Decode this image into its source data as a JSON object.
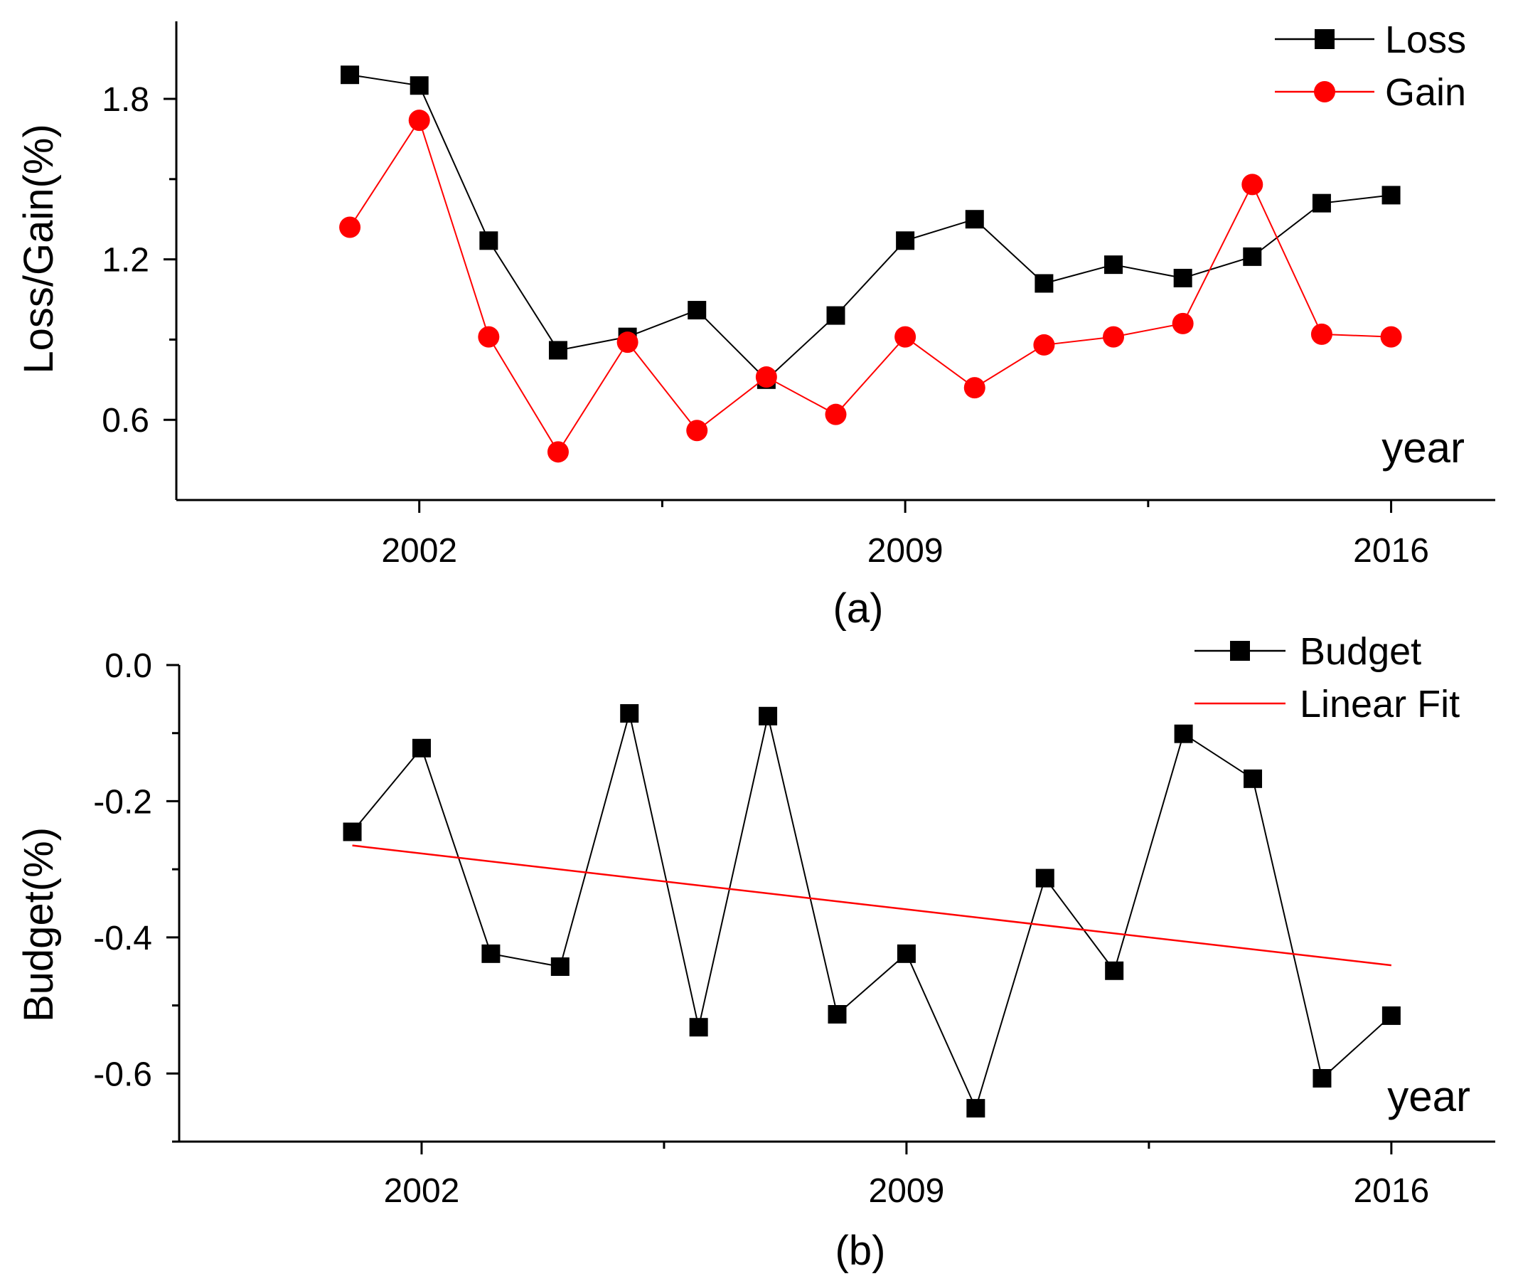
{
  "chart_data": [
    {
      "id": "a",
      "type": "line",
      "caption": "(a)",
      "xlabel": "year",
      "ylabel": "Loss/Gain(%)",
      "xlim": [
        1998.5,
        2017.5
      ],
      "ylim": [
        0.3,
        2.09
      ],
      "x_ticks": [
        2002,
        2009,
        2016
      ],
      "x_minor_ticks": [
        2005.5,
        2012.5
      ],
      "y_ticks": [
        0.6,
        1.2,
        1.8
      ],
      "y_tick_labels": [
        "0.6",
        "1.2",
        "1.8"
      ],
      "y_minor_ticks": [
        0.9,
        1.5
      ],
      "x": [
        2001,
        2002,
        2003,
        2004,
        2005,
        2006,
        2007,
        2008,
        2009,
        2010,
        2011,
        2012,
        2013,
        2014,
        2015,
        2016
      ],
      "series": [
        {
          "name": "Loss",
          "color": "#000000",
          "marker": "square",
          "values": [
            1.89,
            1.85,
            1.27,
            0.86,
            0.91,
            1.01,
            0.75,
            0.99,
            1.27,
            1.35,
            1.11,
            1.18,
            1.13,
            1.21,
            1.41,
            1.44
          ]
        },
        {
          "name": "Gain",
          "color": "#ff0000",
          "marker": "circle",
          "values": [
            1.32,
            1.72,
            0.91,
            0.48,
            0.89,
            0.56,
            0.76,
            0.62,
            0.91,
            0.72,
            0.88,
            0.91,
            0.96,
            1.48,
            0.92,
            0.91
          ]
        }
      ],
      "legend": "top-right"
    },
    {
      "id": "b",
      "type": "line",
      "caption": "(b)",
      "xlabel": "year",
      "ylabel": "Budget(%)",
      "xlim": [
        1998.5,
        2017.5
      ],
      "ylim": [
        -0.7,
        0.0
      ],
      "x_ticks": [
        2002,
        2009,
        2016
      ],
      "x_minor_ticks": [
        2005.5,
        2012.5
      ],
      "y_ticks": [
        0.0,
        -0.2,
        -0.4,
        -0.6
      ],
      "y_tick_labels": [
        "0.0",
        "-0.2",
        "-0.4",
        "-0.6"
      ],
      "y_minor_ticks": [
        -0.1,
        -0.3,
        -0.5,
        -0.7
      ],
      "x": [
        2001,
        2002,
        2003,
        2004,
        2005,
        2006,
        2007,
        2008,
        2009,
        2010,
        2011,
        2012,
        2013,
        2014,
        2015,
        2016
      ],
      "series": [
        {
          "name": "Budget",
          "color": "#000000",
          "marker": "square",
          "values": [
            -0.245,
            -0.122,
            -0.424,
            -0.443,
            -0.071,
            -0.532,
            -0.075,
            -0.513,
            -0.424,
            -0.651,
            -0.313,
            -0.449,
            -0.101,
            -0.167,
            -0.607,
            -0.515
          ]
        },
        {
          "name": "Linear Fit",
          "color": "#ff0000",
          "marker": "none",
          "x": [
            2001,
            2016
          ],
          "values": [
            -0.265,
            -0.441
          ]
        }
      ],
      "legend": "top-right"
    }
  ]
}
